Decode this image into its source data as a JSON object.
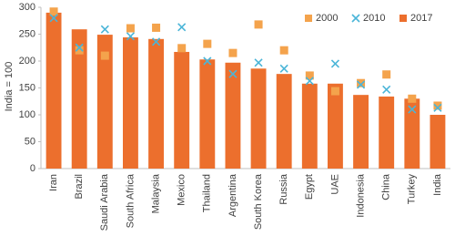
{
  "chart_data": {
    "type": "bar",
    "y_label": "India = 100",
    "categories": [
      "Iran",
      "Brazil",
      "Saudi Arabia",
      "South Africa",
      "Malaysia",
      "Mexico",
      "Thailand",
      "Argentina",
      "South Korea",
      "Russia",
      "Egypt",
      "UAE",
      "Indonesia",
      "China",
      "Turkey",
      "India"
    ],
    "series": [
      {
        "name": "2000",
        "color": "#f4a34c",
        "mark": "square",
        "values": [
          292,
          220,
          210,
          261,
          262,
          224,
          232,
          215,
          268,
          220,
          173,
          144,
          159,
          175,
          130,
          117
        ]
      },
      {
        "name": "2010",
        "color": "#4bb5d8",
        "mark": "x",
        "values": [
          280,
          225,
          259,
          246,
          236,
          263,
          200,
          176,
          197,
          186,
          163,
          195,
          156,
          147,
          110,
          113
        ]
      },
      {
        "name": "2017",
        "color": "#ec6f2d",
        "mark": "bar",
        "values": [
          290,
          259,
          249,
          244,
          241,
          217,
          203,
          197,
          186,
          176,
          158,
          158,
          137,
          134,
          130,
          100
        ]
      }
    ],
    "ylim": [
      0,
      300
    ],
    "yticks": [
      0,
      50,
      100,
      150,
      200,
      250,
      300
    ],
    "legend": "top-right"
  }
}
